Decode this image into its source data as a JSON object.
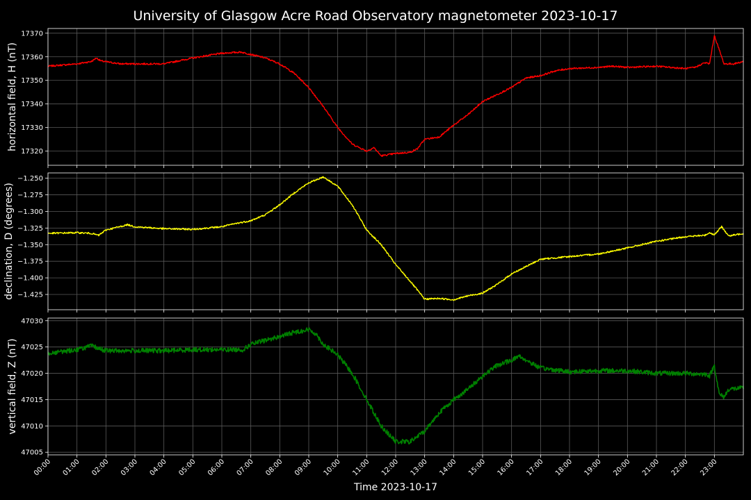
{
  "chart_data": {
    "title": "University of Glasgow Acre Road Observatory magnetometer 2023-10-17",
    "xlabel": "Time 2023-10-17",
    "x_ticks": [
      "00:00",
      "01:00",
      "02:00",
      "03:00",
      "04:00",
      "05:00",
      "06:00",
      "07:00",
      "08:00",
      "09:00",
      "10:00",
      "11:00",
      "12:00",
      "13:00",
      "14:00",
      "15:00",
      "16:00",
      "17:00",
      "18:00",
      "19:00",
      "20:00",
      "21:00",
      "22:00",
      "23:00"
    ],
    "xlim": [
      "00:00",
      "24:00"
    ],
    "grid": true,
    "panels": [
      {
        "type": "line",
        "ylabel": "horizontal field, H (nT)",
        "color": "#ff0000",
        "ylim": [
          17314,
          17372
        ],
        "y_ticks": [
          17320,
          17330,
          17340,
          17350,
          17360,
          17370
        ],
        "y_tick_labels": [
          "17320",
          "17330",
          "17340",
          "17350",
          "17360",
          "17370"
        ],
        "noise": 0.35,
        "series": [
          {
            "x": "00:00",
            "y": 17356
          },
          {
            "x": "00:30",
            "y": 17356.5
          },
          {
            "x": "01:00",
            "y": 17357
          },
          {
            "x": "01:30",
            "y": 17358
          },
          {
            "x": "01:40",
            "y": 17359.5
          },
          {
            "x": "01:50",
            "y": 17358.2
          },
          {
            "x": "02:30",
            "y": 17357
          },
          {
            "x": "03:30",
            "y": 17357
          },
          {
            "x": "04:00",
            "y": 17357
          },
          {
            "x": "05:00",
            "y": 17359.5
          },
          {
            "x": "06:00",
            "y": 17361.5
          },
          {
            "x": "06:40",
            "y": 17362
          },
          {
            "x": "07:00",
            "y": 17361
          },
          {
            "x": "07:30",
            "y": 17359.5
          },
          {
            "x": "08:00",
            "y": 17357
          },
          {
            "x": "08:30",
            "y": 17353
          },
          {
            "x": "09:00",
            "y": 17347
          },
          {
            "x": "09:30",
            "y": 17339
          },
          {
            "x": "10:00",
            "y": 17330
          },
          {
            "x": "10:30",
            "y": 17323
          },
          {
            "x": "11:00",
            "y": 17320
          },
          {
            "x": "11:15",
            "y": 17321.5
          },
          {
            "x": "11:30",
            "y": 17318
          },
          {
            "x": "12:00",
            "y": 17319
          },
          {
            "x": "12:30",
            "y": 17319.5
          },
          {
            "x": "12:45",
            "y": 17321
          },
          {
            "x": "13:00",
            "y": 17325
          },
          {
            "x": "13:30",
            "y": 17326
          },
          {
            "x": "14:00",
            "y": 17331
          },
          {
            "x": "14:30",
            "y": 17335.5
          },
          {
            "x": "15:00",
            "y": 17341
          },
          {
            "x": "15:30",
            "y": 17344
          },
          {
            "x": "16:00",
            "y": 17347
          },
          {
            "x": "16:30",
            "y": 17351
          },
          {
            "x": "17:00",
            "y": 17352
          },
          {
            "x": "17:30",
            "y": 17354
          },
          {
            "x": "18:00",
            "y": 17355
          },
          {
            "x": "19:00",
            "y": 17355.5
          },
          {
            "x": "19:30",
            "y": 17356
          },
          {
            "x": "20:00",
            "y": 17355.5
          },
          {
            "x": "21:00",
            "y": 17356
          },
          {
            "x": "21:30",
            "y": 17355.5
          },
          {
            "x": "22:00",
            "y": 17355
          },
          {
            "x": "22:20",
            "y": 17355.5
          },
          {
            "x": "22:40",
            "y": 17357.5
          },
          {
            "x": "22:50",
            "y": 17357
          },
          {
            "x": "23:00",
            "y": 17369
          },
          {
            "x": "23:10",
            "y": 17363
          },
          {
            "x": "23:20",
            "y": 17357
          },
          {
            "x": "23:40",
            "y": 17357
          },
          {
            "x": "24:00",
            "y": 17358
          }
        ]
      },
      {
        "type": "line",
        "ylabel": "declination, D (degrees)",
        "color": "#ffff00",
        "ylim": [
          -1.448,
          -1.242
        ],
        "y_ticks": [
          -1.425,
          -1.4,
          -1.375,
          -1.35,
          -1.325,
          -1.3,
          -1.275,
          -1.25
        ],
        "y_tick_labels": [
          "−1.425",
          "−1.400",
          "−1.375",
          "−1.350",
          "−1.325",
          "−1.300",
          "−1.275",
          "−1.250"
        ],
        "noise": 0.0012,
        "series": [
          {
            "x": "00:00",
            "y": -1.333
          },
          {
            "x": "01:00",
            "y": -1.332
          },
          {
            "x": "01:30",
            "y": -1.333
          },
          {
            "x": "01:45",
            "y": -1.336
          },
          {
            "x": "02:00",
            "y": -1.328
          },
          {
            "x": "02:45",
            "y": -1.32
          },
          {
            "x": "03:00",
            "y": -1.323
          },
          {
            "x": "04:00",
            "y": -1.326
          },
          {
            "x": "05:00",
            "y": -1.327
          },
          {
            "x": "05:30",
            "y": -1.325
          },
          {
            "x": "06:00",
            "y": -1.323
          },
          {
            "x": "06:30",
            "y": -1.318
          },
          {
            "x": "07:00",
            "y": -1.314
          },
          {
            "x": "07:30",
            "y": -1.305
          },
          {
            "x": "08:00",
            "y": -1.29
          },
          {
            "x": "08:30",
            "y": -1.272
          },
          {
            "x": "09:00",
            "y": -1.257
          },
          {
            "x": "09:30",
            "y": -1.248
          },
          {
            "x": "10:00",
            "y": -1.262
          },
          {
            "x": "10:30",
            "y": -1.29
          },
          {
            "x": "11:00",
            "y": -1.328
          },
          {
            "x": "11:30",
            "y": -1.35
          },
          {
            "x": "12:00",
            "y": -1.38
          },
          {
            "x": "12:30",
            "y": -1.405
          },
          {
            "x": "13:00",
            "y": -1.432
          },
          {
            "x": "13:30",
            "y": -1.431
          },
          {
            "x": "14:00",
            "y": -1.433
          },
          {
            "x": "14:30",
            "y": -1.427
          },
          {
            "x": "15:00",
            "y": -1.423
          },
          {
            "x": "15:30",
            "y": -1.41
          },
          {
            "x": "16:00",
            "y": -1.394
          },
          {
            "x": "16:30",
            "y": -1.383
          },
          {
            "x": "17:00",
            "y": -1.372
          },
          {
            "x": "18:00",
            "y": -1.368
          },
          {
            "x": "19:00",
            "y": -1.364
          },
          {
            "x": "20:00",
            "y": -1.355
          },
          {
            "x": "21:00",
            "y": -1.345
          },
          {
            "x": "22:00",
            "y": -1.338
          },
          {
            "x": "22:40",
            "y": -1.336
          },
          {
            "x": "22:50",
            "y": -1.332
          },
          {
            "x": "23:00",
            "y": -1.335
          },
          {
            "x": "23:15",
            "y": -1.323
          },
          {
            "x": "23:30",
            "y": -1.337
          },
          {
            "x": "24:00",
            "y": -1.333
          }
        ]
      },
      {
        "type": "line",
        "ylabel": "vertical field, Z (nT)",
        "color": "#008000",
        "ylim": [
          47004.5,
          47030.5
        ],
        "y_ticks": [
          47005,
          47010,
          47015,
          47020,
          47025,
          47030
        ],
        "y_tick_labels": [
          "47005",
          "47010",
          "47015",
          "47020",
          "47025",
          "47030"
        ],
        "noise": 0.45,
        "series": [
          {
            "x": "00:00",
            "y": 47023.8
          },
          {
            "x": "01:00",
            "y": 47024.5
          },
          {
            "x": "01:30",
            "y": 47025.2
          },
          {
            "x": "02:00",
            "y": 47024.3
          },
          {
            "x": "03:00",
            "y": 47024.3
          },
          {
            "x": "04:00",
            "y": 47024.3
          },
          {
            "x": "05:00",
            "y": 47024.5
          },
          {
            "x": "06:00",
            "y": 47024.5
          },
          {
            "x": "06:45",
            "y": 47024.5
          },
          {
            "x": "07:00",
            "y": 47025.5
          },
          {
            "x": "08:00",
            "y": 47027
          },
          {
            "x": "08:30",
            "y": 47027.8
          },
          {
            "x": "09:00",
            "y": 47028.3
          },
          {
            "x": "09:15",
            "y": 47027.5
          },
          {
            "x": "09:30",
            "y": 47025.5
          },
          {
            "x": "10:00",
            "y": 47023.5
          },
          {
            "x": "10:30",
            "y": 47020
          },
          {
            "x": "11:00",
            "y": 47015
          },
          {
            "x": "11:30",
            "y": 47010
          },
          {
            "x": "12:00",
            "y": 47007
          },
          {
            "x": "12:30",
            "y": 47007
          },
          {
            "x": "13:00",
            "y": 47009
          },
          {
            "x": "13:30",
            "y": 47012.5
          },
          {
            "x": "14:00",
            "y": 47015
          },
          {
            "x": "14:30",
            "y": 47017
          },
          {
            "x": "15:00",
            "y": 47019.5
          },
          {
            "x": "15:30",
            "y": 47021.5
          },
          {
            "x": "16:00",
            "y": 47022.5
          },
          {
            "x": "16:15",
            "y": 47023.3
          },
          {
            "x": "16:30",
            "y": 47022.5
          },
          {
            "x": "17:00",
            "y": 47021
          },
          {
            "x": "18:00",
            "y": 47020.3
          },
          {
            "x": "19:00",
            "y": 47020.5
          },
          {
            "x": "20:00",
            "y": 47020.5
          },
          {
            "x": "21:00",
            "y": 47020
          },
          {
            "x": "22:00",
            "y": 47020
          },
          {
            "x": "22:45",
            "y": 47019.8
          },
          {
            "x": "22:50",
            "y": 47019.5
          },
          {
            "x": "23:00",
            "y": 47021.5
          },
          {
            "x": "23:10",
            "y": 47016
          },
          {
            "x": "23:20",
            "y": 47015.5
          },
          {
            "x": "23:30",
            "y": 47017
          },
          {
            "x": "24:00",
            "y": 47017.2
          }
        ]
      }
    ]
  }
}
